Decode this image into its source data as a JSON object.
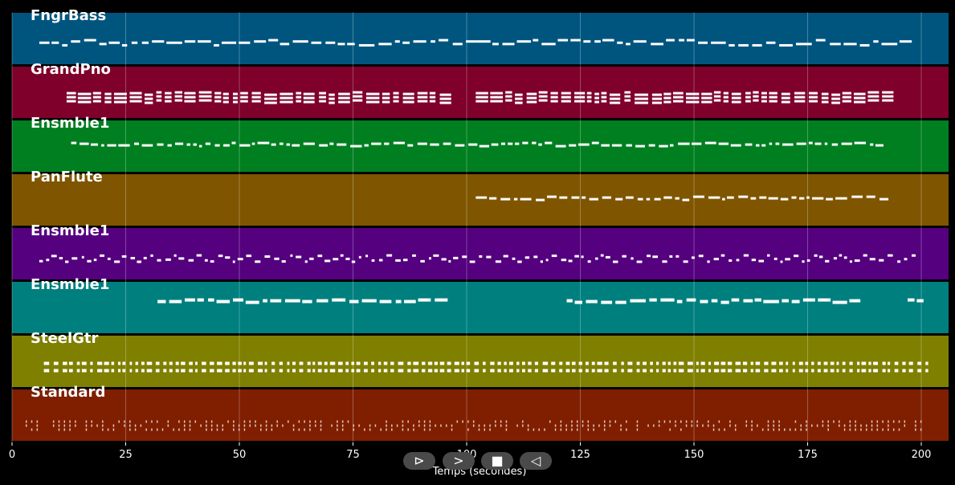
{
  "chart_data": {
    "type": "piano-roll",
    "xlabel": "Temps (secondes)",
    "xlim": [
      0,
      206
    ],
    "x_ticks": [
      0,
      25,
      50,
      75,
      100,
      125,
      150,
      175,
      200
    ],
    "grid": true,
    "tracks": [
      {
        "name": "FngrBass",
        "color": "#00557f",
        "segments": [
          [
            6,
            100
          ],
          [
            102,
            197
          ]
        ],
        "style": "sparse"
      },
      {
        "name": "GrandPno",
        "color": "#7f002a",
        "segments": [
          [
            12,
            96
          ],
          [
            102,
            192
          ]
        ],
        "style": "chords"
      },
      {
        "name": "Ensmble1",
        "color": "#007f20",
        "segments": [
          [
            13,
            192
          ]
        ],
        "style": "line"
      },
      {
        "name": "PanFlute",
        "color": "#7f5500",
        "segments": [
          [
            102,
            192
          ]
        ],
        "style": "line"
      },
      {
        "name": "Ensmble1",
        "color": "#55007f",
        "segments": [
          [
            6,
            199
          ]
        ],
        "style": "wave"
      },
      {
        "name": "Ensmble1",
        "color": "#007f7f",
        "segments": [
          [
            32,
            96
          ],
          [
            122,
            186
          ],
          [
            197,
            200
          ]
        ],
        "style": "blocks"
      },
      {
        "name": "SteelGtr",
        "color": "#7f7f00",
        "segments": [
          [
            7,
            202
          ]
        ],
        "style": "dense"
      },
      {
        "name": "Standard",
        "color": "#7f1f00",
        "segments": [
          [
            3,
            6
          ],
          [
            9,
            200
          ]
        ],
        "style": "drums"
      }
    ]
  },
  "controls": {
    "play": "⊳",
    "forward": ">",
    "stop": "■",
    "back": "◁"
  }
}
